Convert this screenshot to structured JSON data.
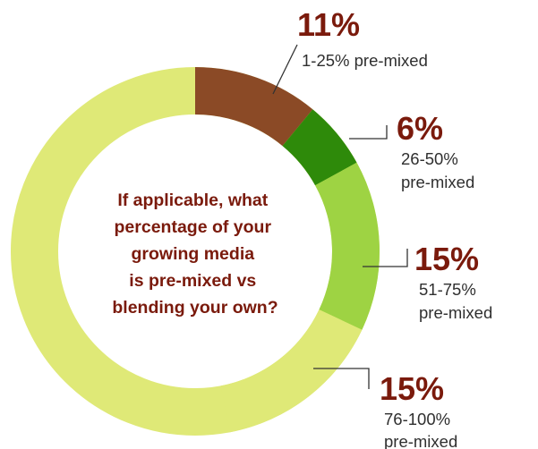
{
  "chart_data": {
    "type": "pie",
    "variant": "donut",
    "title": "If applicable, what percentage of your growing media is pre-mixed vs blending your own?",
    "title_lines": [
      "If applicable, what",
      "percentage of your",
      "growing media",
      "is pre-mixed vs",
      "blending your own?"
    ],
    "slices": [
      {
        "value_label": "11%",
        "value": 11,
        "label_lines": [
          "1-25% pre-mixed"
        ],
        "color": "#8b4a26"
      },
      {
        "value_label": "6%",
        "value": 6,
        "label_lines": [
          "26-50%",
          "pre-mixed"
        ],
        "color": "#2e8a0a"
      },
      {
        "value_label": "15%",
        "value": 15,
        "label_lines": [
          "51-75%",
          "pre-mixed"
        ],
        "color": "#9ed343"
      },
      {
        "value_label": "15%",
        "value": 15,
        "label_lines": [
          "76-100%",
          "pre-mixed"
        ],
        "color": "#dfe977"
      }
    ],
    "remainder": {
      "value": 53,
      "color": "#dfe977"
    },
    "text_color": "#7a1a0c",
    "label_color": "#2f2f2f",
    "leader_color": "#333333"
  }
}
